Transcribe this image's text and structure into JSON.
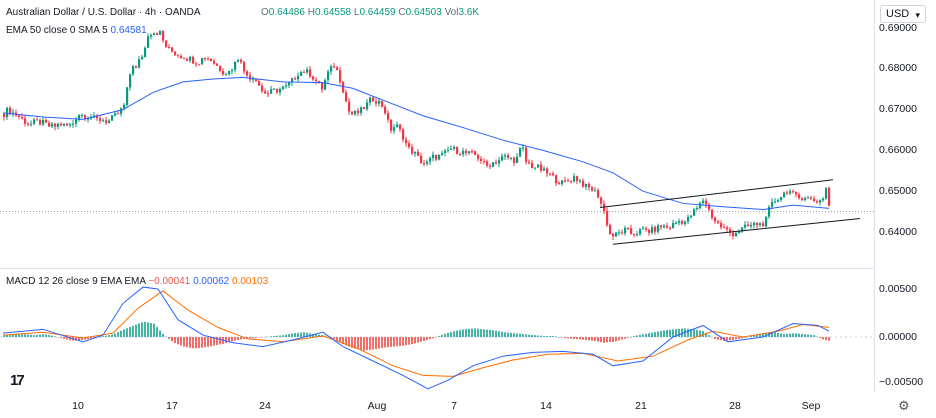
{
  "header": {
    "symbol": "Australian Dollar / U.S. Dollar · 4h · OANDA",
    "open_label": "O",
    "open": "0.64486",
    "high_label": "H",
    "high": "0.64558",
    "low_label": "L",
    "low": "0.64459",
    "close_label": "C",
    "close": "0.64503",
    "vol_label": "Vol",
    "vol": "3.6K",
    "ema_label": "EMA 50 close 0 SMA 5",
    "ema_value": "0.64581",
    "currency": "USD"
  },
  "macd": {
    "label": "MACD 12 26 close 9 EMA EMA",
    "hist": "−0.00041",
    "macd_value": "0.00062",
    "signal_value": "0.00103",
    "axis": [
      "0.00500",
      "0.00000",
      "−0.00500"
    ]
  },
  "price_axis": [
    "0.69000",
    "0.68000",
    "0.67000",
    "0.66000",
    "0.65000",
    "0.64000"
  ],
  "x_ticks": [
    "10",
    "17",
    "24",
    "Aug",
    "7",
    "14",
    "21",
    "28",
    "Sep"
  ],
  "colors": {
    "up": "#089981",
    "down": "#f23645",
    "ema": "#2962ff",
    "signal": "#ff6d00",
    "hist_up": "#26a69a",
    "hist_down": "#ef5350"
  },
  "chart_data": {
    "type": "candlestick",
    "title": "Australian Dollar / U.S. Dollar · 4h · OANDA",
    "ylim": [
      0.6355,
      0.6915
    ],
    "price_path": [
      [
        0,
        0.669
      ],
      [
        4,
        0.67
      ],
      [
        8,
        0.6693
      ],
      [
        14,
        0.6685
      ],
      [
        20,
        0.6672
      ],
      [
        26,
        0.6664
      ],
      [
        32,
        0.667
      ],
      [
        38,
        0.6668
      ],
      [
        44,
        0.666
      ],
      [
        50,
        0.6658
      ],
      [
        56,
        0.6665
      ],
      [
        62,
        0.666
      ],
      [
        68,
        0.6662
      ],
      [
        74,
        0.669
      ],
      [
        80,
        0.6685
      ],
      [
        86,
        0.6683
      ],
      [
        92,
        0.6675
      ],
      [
        98,
        0.6676
      ],
      [
        104,
        0.667
      ],
      [
        110,
        0.6682
      ],
      [
        116,
        0.6695
      ],
      [
        120,
        0.671
      ],
      [
        124,
        0.676
      ],
      [
        128,
        0.6815
      ],
      [
        132,
        0.68
      ],
      [
        136,
        0.6825
      ],
      [
        140,
        0.684
      ],
      [
        144,
        0.6885
      ],
      [
        148,
        0.689
      ],
      [
        152,
        0.689
      ],
      [
        156,
        0.6888
      ],
      [
        160,
        0.6862
      ],
      [
        164,
        0.6848
      ],
      [
        170,
        0.684
      ],
      [
        176,
        0.6832
      ],
      [
        182,
        0.6828
      ],
      [
        188,
        0.6822
      ],
      [
        194,
        0.6815
      ],
      [
        200,
        0.683
      ],
      [
        206,
        0.6824
      ],
      [
        212,
        0.681
      ],
      [
        218,
        0.6795
      ],
      [
        224,
        0.679
      ],
      [
        230,
        0.681
      ],
      [
        236,
        0.6835
      ],
      [
        240,
        0.679
      ],
      [
        246,
        0.678
      ],
      [
        252,
        0.6776
      ],
      [
        258,
        0.6745
      ],
      [
        264,
        0.674
      ],
      [
        270,
        0.6746
      ],
      [
        276,
        0.675
      ],
      [
        282,
        0.6755
      ],
      [
        288,
        0.677
      ],
      [
        294,
        0.679
      ],
      [
        300,
        0.6795
      ],
      [
        306,
        0.6788
      ],
      [
        312,
        0.677
      ],
      [
        318,
        0.6752
      ],
      [
        324,
        0.679
      ],
      [
        330,
        0.6808
      ],
      [
        334,
        0.679
      ],
      [
        338,
        0.676
      ],
      [
        342,
        0.672
      ],
      [
        346,
        0.6688
      ],
      [
        350,
        0.669
      ],
      [
        356,
        0.6695
      ],
      [
        362,
        0.671
      ],
      [
        368,
        0.6728
      ],
      [
        374,
        0.672
      ],
      [
        380,
        0.6705
      ],
      [
        386,
        0.665
      ],
      [
        392,
        0.6662
      ],
      [
        398,
        0.664
      ],
      [
        404,
        0.6605
      ],
      [
        410,
        0.6595
      ],
      [
        416,
        0.6575
      ],
      [
        422,
        0.6565
      ],
      [
        428,
        0.6583
      ],
      [
        434,
        0.6585
      ],
      [
        440,
        0.659
      ],
      [
        446,
        0.6605
      ],
      [
        452,
        0.66
      ],
      [
        458,
        0.6596
      ],
      [
        464,
        0.6592
      ],
      [
        470,
        0.659
      ],
      [
        476,
        0.658
      ],
      [
        482,
        0.656
      ],
      [
        488,
        0.657
      ],
      [
        494,
        0.6575
      ],
      [
        500,
        0.6585
      ],
      [
        506,
        0.658
      ],
      [
        512,
        0.6575
      ],
      [
        518,
        0.6612
      ],
      [
        522,
        0.6572
      ],
      [
        528,
        0.6562
      ],
      [
        534,
        0.6558
      ],
      [
        540,
        0.6548
      ],
      [
        546,
        0.654
      ],
      [
        552,
        0.6528
      ],
      [
        558,
        0.652
      ],
      [
        564,
        0.6525
      ],
      [
        570,
        0.6535
      ],
      [
        576,
        0.6525
      ],
      [
        582,
        0.651
      ],
      [
        588,
        0.6505
      ],
      [
        594,
        0.649
      ],
      [
        600,
        0.645
      ],
      [
        606,
        0.6395
      ],
      [
        610,
        0.639
      ],
      [
        616,
        0.6398
      ],
      [
        622,
        0.6405
      ],
      [
        628,
        0.6395
      ],
      [
        634,
        0.64
      ],
      [
        640,
        0.6405
      ],
      [
        646,
        0.6402
      ],
      [
        652,
        0.6408
      ],
      [
        658,
        0.6415
      ],
      [
        664,
        0.641
      ],
      [
        670,
        0.642
      ],
      [
        676,
        0.6428
      ],
      [
        682,
        0.6425
      ],
      [
        688,
        0.6445
      ],
      [
        694,
        0.646
      ],
      [
        700,
        0.6482
      ],
      [
        704,
        0.6458
      ],
      [
        710,
        0.643
      ],
      [
        716,
        0.6415
      ],
      [
        722,
        0.6405
      ],
      [
        728,
        0.6395
      ],
      [
        734,
        0.6402
      ],
      [
        740,
        0.641
      ],
      [
        746,
        0.6415
      ],
      [
        752,
        0.642
      ],
      [
        758,
        0.6418
      ],
      [
        762,
        0.643
      ],
      [
        766,
        0.6462
      ],
      [
        772,
        0.648
      ],
      [
        778,
        0.649
      ],
      [
        784,
        0.6505
      ],
      [
        788,
        0.6492
      ],
      [
        794,
        0.6482
      ],
      [
        800,
        0.6488
      ],
      [
        806,
        0.648
      ],
      [
        812,
        0.6476
      ],
      [
        818,
        0.6478
      ],
      [
        822,
        0.6508
      ],
      [
        826,
        0.645
      ]
    ],
    "ema_path": [
      [
        0,
        0.6692
      ],
      [
        40,
        0.6682
      ],
      [
        80,
        0.6676
      ],
      [
        120,
        0.67
      ],
      [
        150,
        0.6742
      ],
      [
        180,
        0.6768
      ],
      [
        210,
        0.6775
      ],
      [
        240,
        0.6779
      ],
      [
        280,
        0.6768
      ],
      [
        320,
        0.6766
      ],
      [
        350,
        0.6752
      ],
      [
        380,
        0.6723
      ],
      [
        420,
        0.6685
      ],
      [
        460,
        0.6656
      ],
      [
        500,
        0.6625
      ],
      [
        540,
        0.66
      ],
      [
        580,
        0.6572
      ],
      [
        610,
        0.6545
      ],
      [
        640,
        0.65
      ],
      [
        680,
        0.647
      ],
      [
        720,
        0.6462
      ],
      [
        760,
        0.6455
      ],
      [
        790,
        0.6466
      ],
      [
        826,
        0.6458
      ]
    ],
    "channel": {
      "upper": [
        [
          597,
          0.646
        ],
        [
          830,
          0.6528
        ]
      ],
      "lower": [
        [
          610,
          0.637
        ],
        [
          857,
          0.6433
        ]
      ]
    },
    "dotted_level": 0.645,
    "macd_ylim": [
      -0.0061,
      0.0061
    ],
    "macd_line": [
      [
        0,
        0.0004
      ],
      [
        40,
        0.0008
      ],
      [
        80,
        -0.0005
      ],
      [
        100,
        0.0002
      ],
      [
        120,
        0.0035
      ],
      [
        140,
        0.0052
      ],
      [
        155,
        0.005
      ],
      [
        175,
        0.0018
      ],
      [
        200,
        0.0002
      ],
      [
        230,
        -0.0006
      ],
      [
        260,
        -0.001
      ],
      [
        290,
        -0.0003
      ],
      [
        320,
        0.0005
      ],
      [
        340,
        -0.001
      ],
      [
        370,
        -0.0025
      ],
      [
        400,
        -0.004
      ],
      [
        425,
        -0.0054
      ],
      [
        445,
        -0.0045
      ],
      [
        470,
        -0.003
      ],
      [
        500,
        -0.002
      ],
      [
        530,
        -0.0016
      ],
      [
        560,
        -0.0015
      ],
      [
        590,
        -0.0018
      ],
      [
        610,
        -0.003
      ],
      [
        640,
        -0.0025
      ],
      [
        670,
        0.0
      ],
      [
        700,
        0.0012
      ],
      [
        725,
        -0.0005
      ],
      [
        760,
        0.0
      ],
      [
        790,
        0.0014
      ],
      [
        815,
        0.0012
      ],
      [
        826,
        0.0006
      ]
    ],
    "signal_line": [
      [
        0,
        0.0002
      ],
      [
        40,
        0.0005
      ],
      [
        80,
        -0.0001
      ],
      [
        110,
        0.0004
      ],
      [
        135,
        0.003
      ],
      [
        160,
        0.0048
      ],
      [
        185,
        0.0028
      ],
      [
        215,
        0.001
      ],
      [
        245,
        -0.0002
      ],
      [
        280,
        -0.0005
      ],
      [
        320,
        0.0001
      ],
      [
        355,
        -0.0012
      ],
      [
        390,
        -0.003
      ],
      [
        420,
        -0.004
      ],
      [
        450,
        -0.0041
      ],
      [
        480,
        -0.0032
      ],
      [
        510,
        -0.0024
      ],
      [
        545,
        -0.0018
      ],
      [
        580,
        -0.0017
      ],
      [
        615,
        -0.0025
      ],
      [
        650,
        -0.002
      ],
      [
        685,
        -0.0003
      ],
      [
        710,
        0.0006
      ],
      [
        740,
        0.0
      ],
      [
        775,
        0.0006
      ],
      [
        800,
        0.0013
      ],
      [
        826,
        0.001
      ]
    ],
    "histogram": [
      [
        0,
        0.0002
      ],
      [
        10,
        0.0003
      ],
      [
        20,
        0.0003
      ],
      [
        30,
        0.0002
      ],
      [
        40,
        0.0003
      ],
      [
        50,
        0.0001
      ],
      [
        60,
        -0.0002
      ],
      [
        70,
        -0.0004
      ],
      [
        80,
        -0.0003
      ],
      [
        90,
        -0.0001
      ],
      [
        100,
        0.0001
      ],
      [
        110,
        0.0003
      ],
      [
        120,
        0.0008
      ],
      [
        130,
        0.0012
      ],
      [
        140,
        0.0016
      ],
      [
        150,
        0.0014
      ],
      [
        160,
        0.0002
      ],
      [
        170,
        -0.0006
      ],
      [
        180,
        -0.001
      ],
      [
        190,
        -0.0012
      ],
      [
        200,
        -0.0011
      ],
      [
        210,
        -0.0009
      ],
      [
        220,
        -0.0007
      ],
      [
        230,
        -0.0004
      ],
      [
        240,
        -0.0002
      ],
      [
        250,
        -0.0001
      ],
      [
        260,
        0.0
      ],
      [
        270,
        0.0001
      ],
      [
        280,
        0.0002
      ],
      [
        290,
        0.0004
      ],
      [
        300,
        0.0005
      ],
      [
        310,
        0.0003
      ],
      [
        320,
        0.0002
      ],
      [
        330,
        -0.0002
      ],
      [
        340,
        -0.0008
      ],
      [
        350,
        -0.0012
      ],
      [
        360,
        -0.0014
      ],
      [
        370,
        -0.0013
      ],
      [
        380,
        -0.0011
      ],
      [
        390,
        -0.001
      ],
      [
        400,
        -0.0009
      ],
      [
        410,
        -0.0007
      ],
      [
        420,
        -0.0004
      ],
      [
        430,
        -0.0001
      ],
      [
        440,
        0.0003
      ],
      [
        450,
        0.0006
      ],
      [
        460,
        0.0008
      ],
      [
        470,
        0.0009
      ],
      [
        480,
        0.0008
      ],
      [
        490,
        0.0007
      ],
      [
        500,
        0.0005
      ],
      [
        510,
        0.0004
      ],
      [
        520,
        0.0003
      ],
      [
        530,
        0.0002
      ],
      [
        540,
        0.0001
      ],
      [
        550,
        0.0001
      ],
      [
        560,
        -0.0001
      ],
      [
        570,
        -0.0002
      ],
      [
        580,
        -0.0003
      ],
      [
        590,
        -0.0004
      ],
      [
        600,
        -0.0006
      ],
      [
        610,
        -0.0005
      ],
      [
        620,
        -0.0002
      ],
      [
        630,
        0.0001
      ],
      [
        640,
        0.0003
      ],
      [
        650,
        0.0005
      ],
      [
        660,
        0.0007
      ],
      [
        670,
        0.0008
      ],
      [
        680,
        0.0009
      ],
      [
        690,
        0.0008
      ],
      [
        700,
        0.0006
      ],
      [
        710,
        -0.0002
      ],
      [
        720,
        -0.0004
      ],
      [
        730,
        -0.0003
      ],
      [
        740,
        -0.0001
      ],
      [
        750,
        0.0002
      ],
      [
        760,
        0.0004
      ],
      [
        770,
        0.0005
      ],
      [
        780,
        0.0003
      ],
      [
        790,
        0.0004
      ],
      [
        800,
        0.0003
      ],
      [
        810,
        0.0002
      ],
      [
        820,
        -0.0003
      ],
      [
        826,
        -0.0004
      ]
    ]
  }
}
